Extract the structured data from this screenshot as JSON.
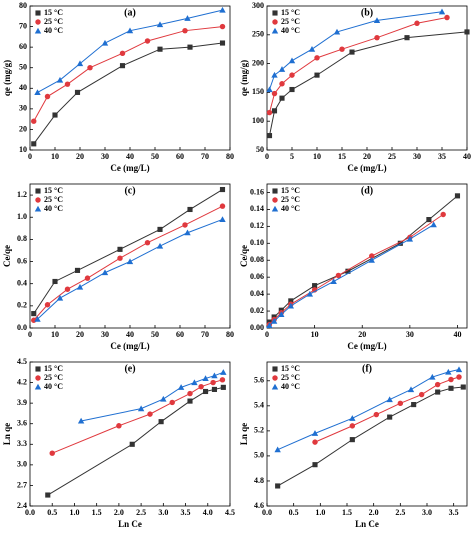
{
  "chart_data": [
    {
      "type": "scatter",
      "title": "(a)",
      "x_label": "Ce (mg/L)",
      "y_label": "qe (mg/g)",
      "xlim": [
        0,
        80
      ],
      "xticks": [
        0,
        10,
        20,
        30,
        40,
        50,
        60,
        70,
        80
      ],
      "ylim": [
        10,
        80
      ],
      "yticks": [
        10,
        20,
        30,
        40,
        50,
        60,
        70,
        80
      ],
      "legend": "upper left",
      "series": [
        {
          "name": "15 °C",
          "color": "#333333",
          "marker": "square",
          "x": [
            1.5,
            10,
            19,
            37,
            52,
            64,
            77
          ],
          "values": [
            13,
            27,
            38,
            51,
            59,
            60,
            62
          ]
        },
        {
          "name": "25 °C",
          "color": "#e0393e",
          "marker": "circle",
          "x": [
            1.5,
            7,
            15,
            24,
            37,
            47,
            62,
            77
          ],
          "values": [
            24,
            36,
            42,
            50,
            57,
            63,
            68,
            70
          ]
        },
        {
          "name": "40 °C",
          "color": "#1f6fd1",
          "marker": "triangle",
          "x": [
            3,
            12,
            20,
            30,
            40,
            52,
            63,
            77
          ],
          "values": [
            38,
            44,
            52,
            62,
            68,
            71,
            74,
            78
          ]
        }
      ]
    },
    {
      "type": "scatter",
      "title": "(b)",
      "x_label": "Ce (mg/L)",
      "y_label": "qe (mg/g)",
      "xlim": [
        0,
        40
      ],
      "xticks": [
        0,
        5,
        10,
        15,
        20,
        25,
        30,
        35,
        40
      ],
      "ylim": [
        50,
        300
      ],
      "yticks": [
        50,
        100,
        150,
        200,
        250,
        300
      ],
      "legend": "upper left",
      "series": [
        {
          "name": "15 °C",
          "color": "#333333",
          "marker": "square",
          "x": [
            0.5,
            1.5,
            3,
            5,
            10,
            17,
            28,
            40
          ],
          "values": [
            75,
            118,
            140,
            155,
            180,
            220,
            245,
            255
          ]
        },
        {
          "name": "25 °C",
          "color": "#e0393e",
          "marker": "circle",
          "x": [
            0.5,
            1.5,
            3,
            5,
            10,
            15,
            22,
            30,
            36
          ],
          "values": [
            115,
            148,
            165,
            180,
            210,
            225,
            245,
            270,
            280
          ]
        },
        {
          "name": "40 °C",
          "color": "#1f6fd1",
          "marker": "triangle",
          "x": [
            0.5,
            1.5,
            3,
            5,
            9,
            14,
            22,
            35
          ],
          "values": [
            155,
            180,
            190,
            205,
            225,
            255,
            275,
            290
          ]
        }
      ]
    },
    {
      "type": "scatter",
      "title": "(c)",
      "x_label": "Ce (mg/L)",
      "y_label": "Ce/qe",
      "xlim": [
        0,
        80
      ],
      "xticks": [
        0,
        10,
        20,
        30,
        40,
        50,
        60,
        70,
        80
      ],
      "ylim": [
        0,
        1.3
      ],
      "yticks": [
        {
          "value": 0,
          "label": "0.0"
        },
        0.2,
        0.4,
        0.6,
        0.8,
        {
          "value": 1,
          "label": "1.0"
        },
        1.2
      ],
      "legend": "upper left",
      "series": [
        {
          "name": "15 °C",
          "color": "#333333",
          "marker": "square",
          "x": [
            1.5,
            10,
            19,
            36,
            52,
            64,
            77
          ],
          "values": [
            0.13,
            0.42,
            0.52,
            0.71,
            0.89,
            1.07,
            1.25
          ]
        },
        {
          "name": "25 °C",
          "color": "#e0393e",
          "marker": "circle",
          "x": [
            1.5,
            7,
            15,
            23,
            36,
            47,
            62,
            77
          ],
          "values": [
            0.07,
            0.21,
            0.35,
            0.45,
            0.63,
            0.77,
            0.93,
            1.1
          ]
        },
        {
          "name": "40 °C",
          "color": "#1f6fd1",
          "marker": "triangle",
          "x": [
            3,
            12,
            20,
            30,
            40,
            52,
            63,
            77
          ],
          "values": [
            0.08,
            0.27,
            0.37,
            0.5,
            0.6,
            0.74,
            0.86,
            0.98
          ]
        }
      ]
    },
    {
      "type": "scatter",
      "title": "(d)",
      "x_label": "Ce (mg/L)",
      "y_label": "Ce/qe",
      "xlim": [
        0,
        42
      ],
      "xticks": [
        0,
        10,
        20,
        30,
        40
      ],
      "ylim": [
        0,
        0.17
      ],
      "yticks": [
        {
          "value": 0,
          "label": "0.00"
        },
        {
          "value": 0.02,
          "label": "0.02"
        },
        {
          "value": 0.04,
          "label": "0.04"
        },
        {
          "value": 0.06,
          "label": "0.06"
        },
        {
          "value": 0.08,
          "label": "0.08"
        },
        {
          "value": 0.1,
          "label": "0.10"
        },
        {
          "value": 0.12,
          "label": "0.12"
        },
        {
          "value": 0.14,
          "label": "0.14"
        },
        {
          "value": 0.16,
          "label": "0.16"
        }
      ],
      "legend": "upper left",
      "series": [
        {
          "name": "15 °C",
          "color": "#333333",
          "marker": "square",
          "x": [
            0.5,
            1.5,
            3,
            5,
            10,
            17,
            28,
            34,
            40
          ],
          "values": [
            0.007,
            0.013,
            0.021,
            0.032,
            0.05,
            0.067,
            0.1,
            0.128,
            0.156
          ]
        },
        {
          "name": "25 °C",
          "color": "#e0393e",
          "marker": "circle",
          "x": [
            0.5,
            1.5,
            3,
            5,
            10,
            15,
            22,
            30,
            37
          ],
          "values": [
            0.004,
            0.01,
            0.018,
            0.028,
            0.045,
            0.062,
            0.085,
            0.107,
            0.134
          ]
        },
        {
          "name": "40 °C",
          "color": "#1f6fd1",
          "marker": "triangle",
          "x": [
            0.5,
            1.5,
            3,
            5,
            9,
            14,
            22,
            30,
            35
          ],
          "values": [
            0.003,
            0.008,
            0.016,
            0.026,
            0.04,
            0.055,
            0.08,
            0.105,
            0.122
          ]
        }
      ]
    },
    {
      "type": "scatter",
      "title": "(e)",
      "x_label": "Ln Ce",
      "y_label": "Ln qe",
      "xlim": [
        0,
        4.5
      ],
      "xticks": [
        {
          "value": 0,
          "label": "0.0"
        },
        0.5,
        {
          "value": 1,
          "label": "1.0"
        },
        1.5,
        {
          "value": 2,
          "label": "2.0"
        },
        2.5,
        {
          "value": 3,
          "label": "3.0"
        },
        3.5,
        {
          "value": 4,
          "label": "4.0"
        },
        4.5
      ],
      "ylim": [
        2.4,
        4.5
      ],
      "yticks": [
        2.4,
        2.7,
        {
          "value": 3,
          "label": "3.0"
        },
        3.3,
        3.6,
        3.9,
        4.2,
        4.5
      ],
      "legend": "upper left",
      "series": [
        {
          "name": "15 °C",
          "color": "#333333",
          "marker": "square",
          "x": [
            0.4,
            2.3,
            2.95,
            3.6,
            3.95,
            4.15,
            4.35
          ],
          "values": [
            2.56,
            3.3,
            3.63,
            3.93,
            4.07,
            4.1,
            4.13
          ]
        },
        {
          "name": "25 °C",
          "color": "#e0393e",
          "marker": "circle",
          "x": [
            0.5,
            2,
            2.7,
            3.2,
            3.6,
            3.85,
            4.12,
            4.33
          ],
          "values": [
            3.17,
            3.57,
            3.74,
            3.91,
            4.04,
            4.14,
            4.2,
            4.24
          ]
        },
        {
          "name": "40 °C",
          "color": "#1f6fd1",
          "marker": "triangle",
          "x": [
            1.15,
            2.5,
            3,
            3.4,
            3.7,
            3.95,
            4.15,
            4.35
          ],
          "values": [
            3.64,
            3.82,
            3.96,
            4.13,
            4.2,
            4.26,
            4.3,
            4.35
          ]
        }
      ]
    },
    {
      "type": "scatter",
      "title": "(f)",
      "x_label": "Ln Ce",
      "y_label": "Ln qe",
      "xlim": [
        0,
        3.75
      ],
      "xticks": [
        {
          "value": 0,
          "label": "0.0"
        },
        0.5,
        {
          "value": 1,
          "label": "1.0"
        },
        1.5,
        {
          "value": 2,
          "label": "2.0"
        },
        2.5,
        {
          "value": 3,
          "label": "3.0"
        },
        3.5
      ],
      "ylim": [
        4.6,
        5.75
      ],
      "yticks": [
        4.6,
        4.8,
        {
          "value": 5,
          "label": "5.0"
        },
        5.2,
        5.4,
        5.6
      ],
      "legend": "upper left",
      "series": [
        {
          "name": "15 °C",
          "color": "#333333",
          "marker": "square",
          "x": [
            0.2,
            0.9,
            1.6,
            2.3,
            2.75,
            3.2,
            3.45,
            3.68
          ],
          "values": [
            4.76,
            4.93,
            5.13,
            5.31,
            5.41,
            5.51,
            5.54,
            5.55
          ]
        },
        {
          "name": "25 °C",
          "color": "#e0393e",
          "marker": "circle",
          "x": [
            0.9,
            1.6,
            2.05,
            2.5,
            2.9,
            3.2,
            3.45,
            3.6
          ],
          "values": [
            5.11,
            5.24,
            5.33,
            5.42,
            5.49,
            5.57,
            5.61,
            5.63
          ]
        },
        {
          "name": "40 °C",
          "color": "#1f6fd1",
          "marker": "triangle",
          "x": [
            0.2,
            0.9,
            1.6,
            2.3,
            2.7,
            3.1,
            3.4,
            3.6
          ],
          "values": [
            5.05,
            5.18,
            5.3,
            5.45,
            5.53,
            5.63,
            5.67,
            5.69
          ]
        }
      ]
    }
  ]
}
